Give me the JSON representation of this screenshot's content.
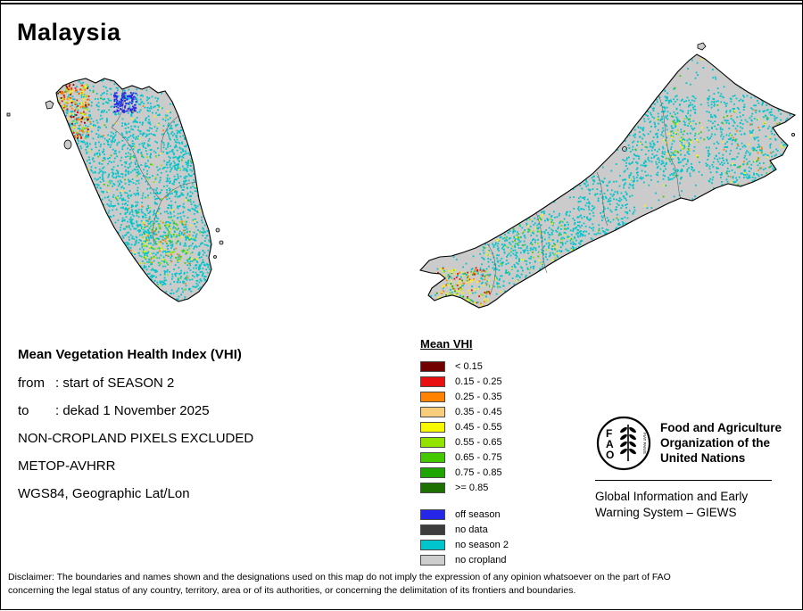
{
  "title": "Malaysia",
  "meta": {
    "heading": "Mean Vegetation Health Index (VHI)",
    "from": {
      "label": "from",
      "value": ": start of SEASON 2"
    },
    "to": {
      "label": "to",
      "value": ": dekad 1 November 2025"
    },
    "lines": [
      "NON-CROPLAND PIXELS EXCLUDED",
      "METOP-AVHRR",
      "WGS84, Geographic Lat/Lon"
    ]
  },
  "legend": {
    "title": "Mean VHI",
    "classes": [
      {
        "label": "< 0.15",
        "color": "#730000"
      },
      {
        "label": "0.15 - 0.25",
        "color": "#e81010"
      },
      {
        "label": "0.25 - 0.35",
        "color": "#ff8200"
      },
      {
        "label": "0.35 - 0.45",
        "color": "#f9cd7c"
      },
      {
        "label": "0.45 - 0.55",
        "color": "#f8f800"
      },
      {
        "label": "0.55 - 0.65",
        "color": "#92e400"
      },
      {
        "label": "0.65 - 0.75",
        "color": "#46c800"
      },
      {
        "label": "0.75 - 0.85",
        "color": "#1ea500"
      },
      {
        "label": ">= 0.85",
        "color": "#1e7000"
      }
    ],
    "extra": [
      {
        "label": "off season",
        "color": "#2626e8"
      },
      {
        "label": "no data",
        "color": "#3d3d3d"
      },
      {
        "label": "no season 2",
        "color": "#00c5cc"
      },
      {
        "label": "no cropland",
        "color": "#cdcdcd"
      }
    ]
  },
  "map": {
    "regions": [
      "Peninsular Malaysia",
      "East Malaysia (Borneo)"
    ],
    "land_color": "#cbcbcb",
    "outline_color": "#000000"
  },
  "fao": {
    "logo_text_f": "F",
    "logo_text_a": "A",
    "logo_text_o": "O",
    "logo_motto": "FIAT PANIS",
    "org_lines": [
      "Food and Agriculture",
      "Organization of the",
      "United Nations"
    ],
    "giews_lines": [
      "Global Information and Early",
      "Warning System – GIEWS"
    ]
  },
  "disclaimer": [
    "Disclaimer: The boundaries and names shown and the designations used on this map do not imply the expression of any opinion whatsoever on the part of FAO",
    "concerning the legal status of any country, territory, area or of its authorities, or concerning the delimitation of its frontiers and boundaries."
  ]
}
